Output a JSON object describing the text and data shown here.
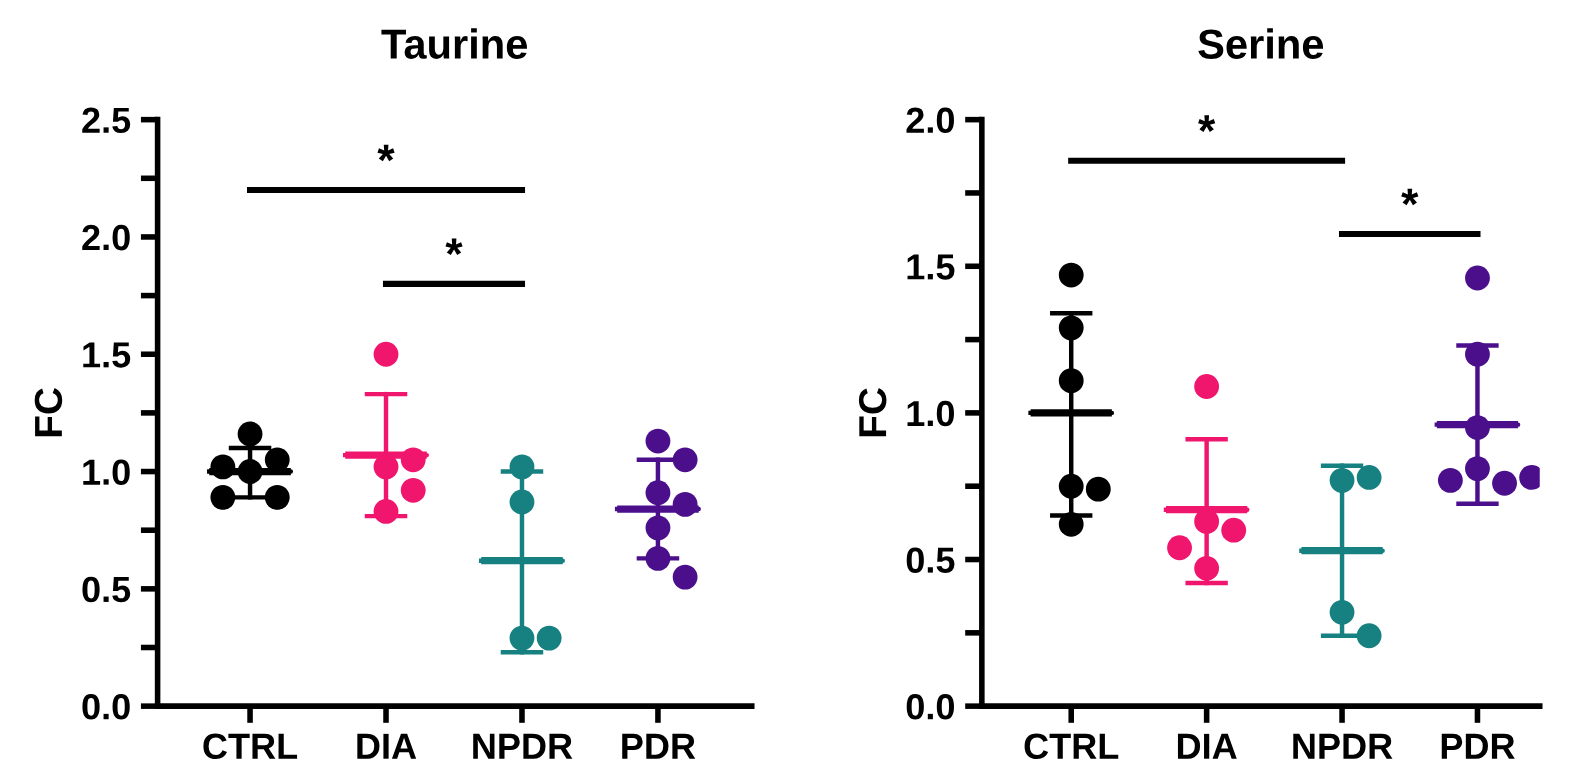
{
  "chart_data": [
    {
      "type": "box",
      "title": "Taurine",
      "ylabel": "FC",
      "categories": [
        "CTRL",
        "DIA",
        "NPDR",
        "PDR"
      ],
      "ylim": [
        0,
        2.5
      ],
      "yticks": [
        {
          "value": 0,
          "label": "0.0"
        },
        {
          "value": 0.25,
          "label": null
        },
        {
          "value": 0.5,
          "label": "0.5"
        },
        {
          "value": 0.75,
          "label": null
        },
        {
          "value": 1.0,
          "label": "1.0"
        },
        {
          "value": 1.25,
          "label": null
        },
        {
          "value": 1.5,
          "label": "1.5"
        },
        {
          "value": 1.75,
          "label": null
        },
        {
          "value": 2.0,
          "label": "2.0"
        },
        {
          "value": 2.25,
          "label": null
        },
        {
          "value": 2.5,
          "label": "2.5"
        }
      ],
      "colors": [
        "#000000",
        "#f0166e",
        "#178080",
        "#4b0f8c"
      ],
      "boxes": [
        {
          "low": 0.89,
          "q1": 1.0,
          "median": 1.0,
          "q3": 1.0,
          "high": 1.1
        },
        {
          "low": 0.81,
          "q1": 1.07,
          "median": 1.07,
          "q3": 1.07,
          "high": 1.33
        },
        {
          "low": 0.23,
          "q1": 0.62,
          "median": 0.62,
          "q3": 0.62,
          "high": 1.0
        },
        {
          "low": 0.63,
          "q1": 0.84,
          "median": 0.84,
          "q3": 0.84,
          "high": 1.05
        }
      ],
      "marker": "circle",
      "series": [
        {
          "type": "scatter",
          "color": "#000000",
          "x": [
            "CTRL",
            "CTRL",
            "CTRL",
            "CTRL",
            "CTRL",
            "CTRL"
          ],
          "values": [
            1.16,
            1.05,
            1.0,
            1.02,
            0.89,
            0.89
          ]
        },
        {
          "type": "scatter",
          "color": "#f0166e",
          "x": [
            "DIA",
            "DIA",
            "DIA",
            "DIA",
            "DIA"
          ],
          "values": [
            1.5,
            1.02,
            1.05,
            0.92,
            0.83
          ]
        },
        {
          "type": "scatter",
          "color": "#178080",
          "x": [
            "NPDR",
            "NPDR",
            "NPDR",
            "NPDR"
          ],
          "values": [
            1.02,
            0.87,
            0.29,
            0.29
          ]
        },
        {
          "type": "scatter",
          "color": "#4b0f8c",
          "x": [
            "PDR",
            "PDR",
            "PDR",
            "PDR",
            "PDR",
            "PDR",
            "PDR"
          ],
          "values": [
            1.13,
            1.05,
            0.91,
            0.86,
            0.76,
            0.63,
            0.55
          ]
        }
      ],
      "annotations": [
        "*",
        "*"
      ]
    },
    {
      "type": "box",
      "title": "Serine",
      "ylabel": "FC",
      "categories": [
        "CTRL",
        "DIA",
        "NPDR",
        "PDR"
      ],
      "ylim": [
        0,
        2.0
      ],
      "yticks": [
        {
          "value": 0,
          "label": "0.0"
        },
        {
          "value": 0.25,
          "label": null
        },
        {
          "value": 0.5,
          "label": "0.5"
        },
        {
          "value": 0.75,
          "label": null
        },
        {
          "value": 1.0,
          "label": "1.0"
        },
        {
          "value": 1.25,
          "label": null
        },
        {
          "value": 1.5,
          "label": "1.5"
        },
        {
          "value": 1.75,
          "label": null
        },
        {
          "value": 2.0,
          "label": "2.0"
        }
      ],
      "colors": [
        "#000000",
        "#f0166e",
        "#178080",
        "#4b0f8c"
      ],
      "boxes": [
        {
          "low": 0.65,
          "q1": 1.0,
          "median": 1.0,
          "q3": 1.0,
          "high": 1.34
        },
        {
          "low": 0.42,
          "q1": 0.67,
          "median": 0.67,
          "q3": 0.67,
          "high": 0.91
        },
        {
          "low": 0.24,
          "q1": 0.53,
          "median": 0.53,
          "q3": 0.53,
          "high": 0.82
        },
        {
          "low": 0.69,
          "q1": 0.96,
          "median": 0.96,
          "q3": 0.96,
          "high": 1.23
        }
      ],
      "marker": "circle",
      "series": [
        {
          "type": "scatter",
          "color": "#000000",
          "x": [
            "CTRL",
            "CTRL",
            "CTRL",
            "CTRL",
            "CTRL",
            "CTRL"
          ],
          "values": [
            1.47,
            1.29,
            1.11,
            0.75,
            0.74,
            0.62
          ]
        },
        {
          "type": "scatter",
          "color": "#f0166e",
          "x": [
            "DIA",
            "DIA",
            "DIA",
            "DIA",
            "DIA"
          ],
          "values": [
            1.09,
            0.63,
            0.6,
            0.54,
            0.47
          ]
        },
        {
          "type": "scatter",
          "color": "#178080",
          "x": [
            "NPDR",
            "NPDR",
            "NPDR",
            "NPDR"
          ],
          "values": [
            0.77,
            0.78,
            0.32,
            0.24
          ]
        },
        {
          "type": "scatter",
          "color": "#4b0f8c",
          "x": [
            "PDR",
            "PDR",
            "PDR",
            "PDR",
            "PDR",
            "PDR",
            "PDR"
          ],
          "values": [
            1.46,
            1.2,
            0.95,
            0.81,
            0.76,
            0.77,
            0.78
          ]
        }
      ],
      "annotations": [
        "*",
        "*"
      ]
    }
  ]
}
